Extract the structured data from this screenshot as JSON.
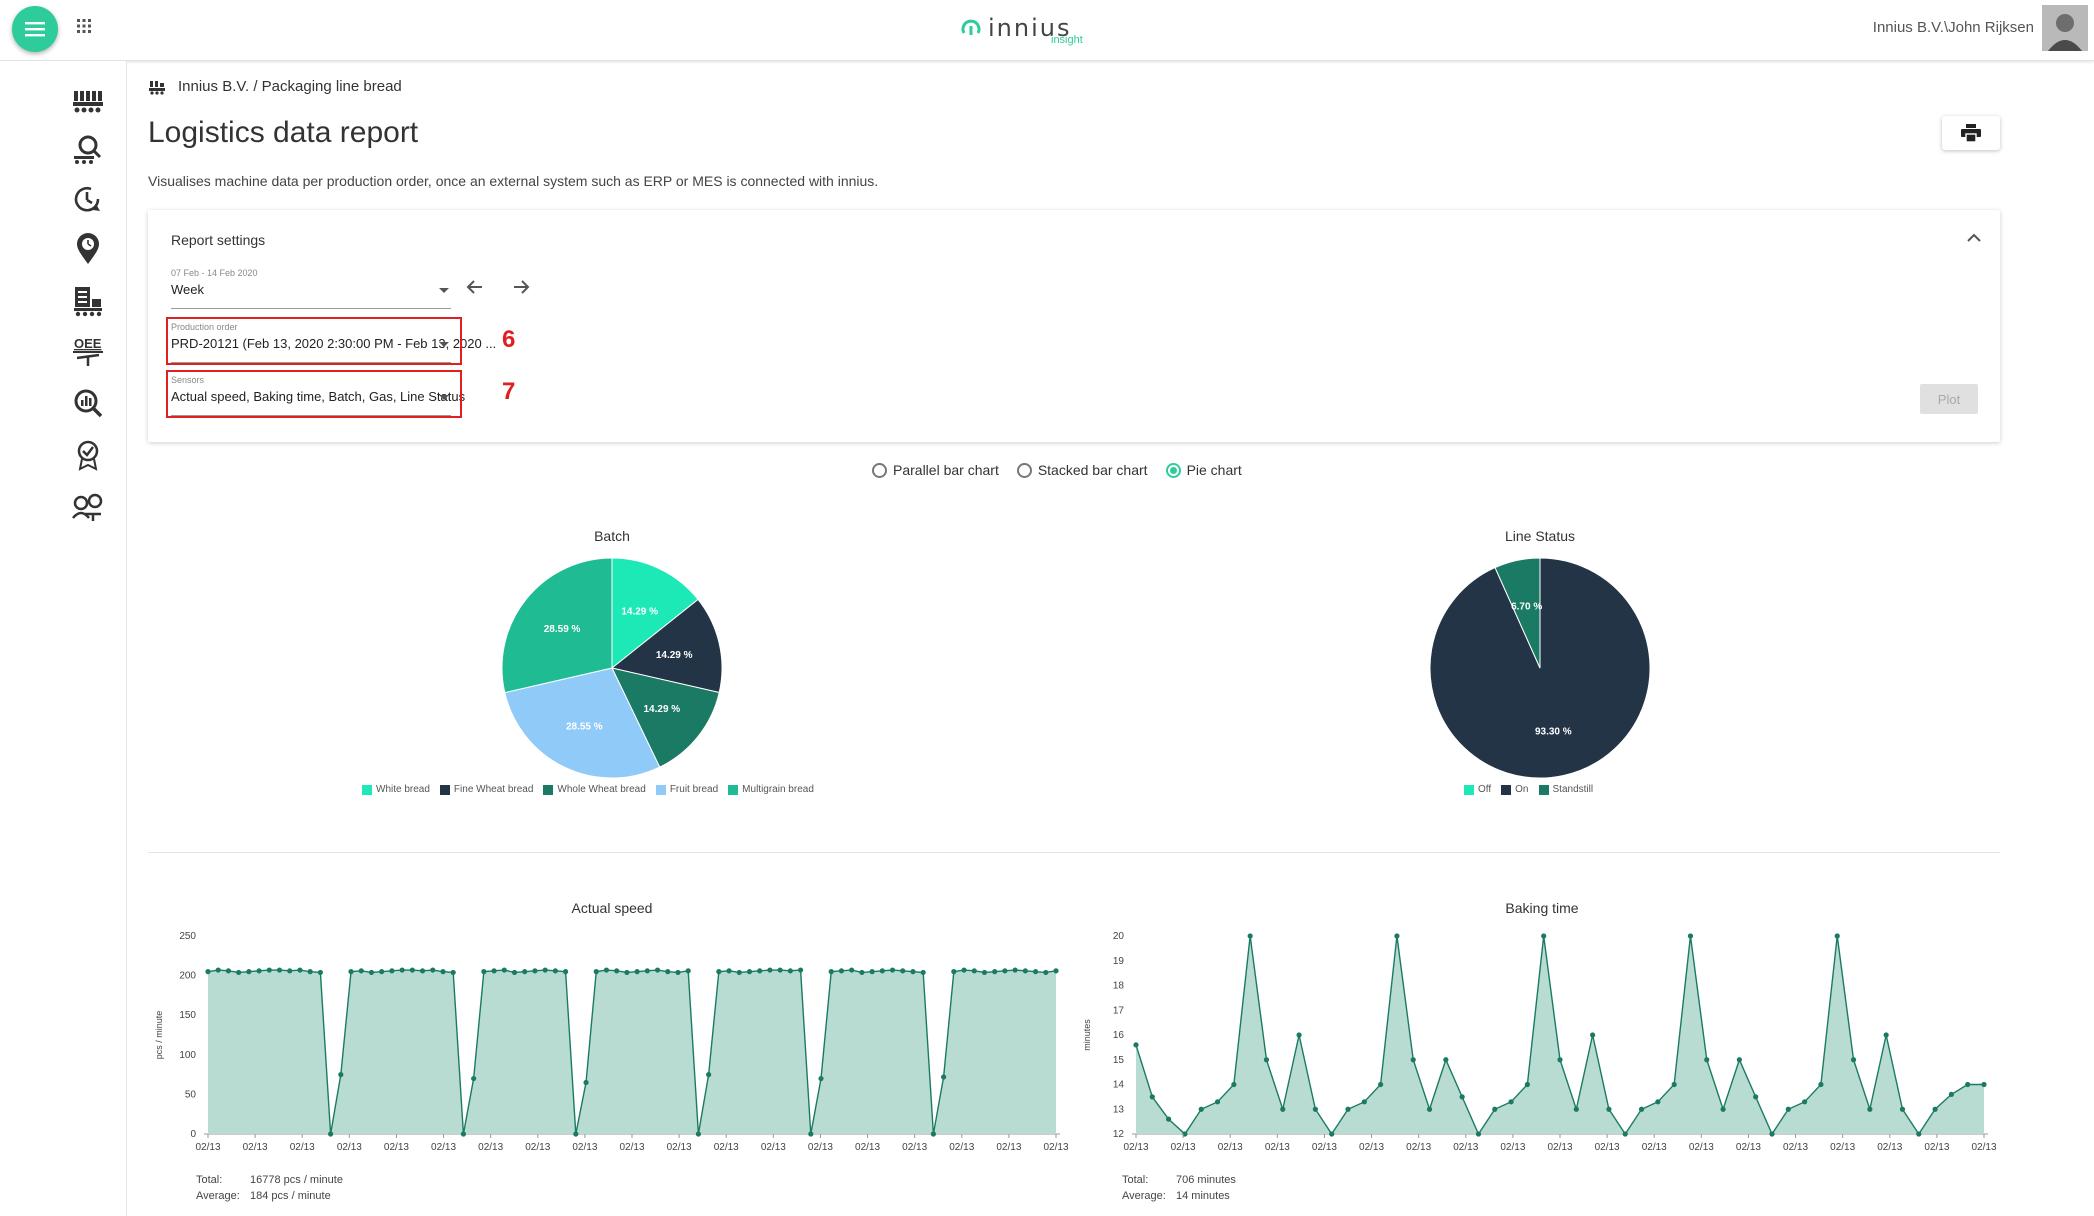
{
  "header": {
    "logo_text": "innius",
    "logo_sub": "insight",
    "user_name": "Innius B.V.\\John Rijksen"
  },
  "sidebar": {
    "items": [
      {
        "name": "machines-icon"
      },
      {
        "name": "search-machine-icon"
      },
      {
        "name": "history-icon"
      },
      {
        "name": "location-icon"
      },
      {
        "name": "reports-icon"
      },
      {
        "name": "oee-icon",
        "label": "OEE"
      },
      {
        "name": "analytics-icon"
      },
      {
        "name": "certificate-icon"
      },
      {
        "name": "people-icon"
      }
    ]
  },
  "breadcrumb": {
    "text": "Innius B.V. / Packaging line bread"
  },
  "page": {
    "title": "Logistics data report",
    "description": "Visualises machine data per production order, once an external system such as ERP or MES is connected with innius."
  },
  "settings": {
    "title": "Report settings",
    "period": {
      "label": "07 Feb - 14 Feb 2020",
      "value": "Week"
    },
    "production_order": {
      "label": "Production order",
      "value": "PRD-20121 (Feb 13, 2020 2:30:00 PM - Feb 13, 2020 ..."
    },
    "sensors": {
      "label": "Sensors",
      "value": "Actual speed, Baking time, Batch, Gas, Line Status"
    },
    "marker_6": "6",
    "marker_7": "7",
    "plot_label": "Plot"
  },
  "chart_options": {
    "parallel": "Parallel bar chart",
    "stacked": "Stacked bar chart",
    "pie": "Pie chart",
    "selected": "pie"
  },
  "chart_data": [
    {
      "type": "pie",
      "title": "Batch",
      "categories": [
        "White bread",
        "Fine Wheat bread",
        "Whole Wheat bread",
        "Fruit bread",
        "Multigrain bread"
      ],
      "values": [
        14.29,
        14.29,
        14.29,
        28.55,
        28.59
      ],
      "labels": [
        "14.29 %",
        "14.29 %",
        "14.29 %",
        "28.55 %",
        "28.59 %"
      ],
      "colors": [
        "#1de9b6",
        "#243447",
        "#1b7a63",
        "#90caf9",
        "#1fbc94"
      ],
      "legend": "bottom"
    },
    {
      "type": "pie",
      "title": "Line Status",
      "categories": [
        "Off",
        "On",
        "Standstill"
      ],
      "values": [
        0,
        93.3,
        6.7
      ],
      "labels": [
        "",
        "93.30 %",
        "6.70 %"
      ],
      "colors": [
        "#1de9b6",
        "#243447",
        "#1b7a63"
      ],
      "legend": "bottom"
    },
    {
      "type": "area",
      "title": "Actual speed",
      "ylabel": "pcs / minute",
      "ylim": [
        0,
        250
      ],
      "yticks": [
        0,
        50,
        100,
        150,
        200,
        250
      ],
      "xtick_label": "02/13",
      "xtick_count": 19,
      "values": [
        205,
        207,
        206,
        204,
        205,
        206,
        207,
        207,
        206,
        207,
        205,
        204,
        0,
        75,
        205,
        206,
        204,
        205,
        206,
        207,
        207,
        206,
        207,
        205,
        204,
        0,
        70,
        205,
        206,
        207,
        204,
        205,
        206,
        207,
        206,
        205,
        0,
        65,
        205,
        207,
        206,
        204,
        205,
        206,
        207,
        205,
        204,
        206,
        0,
        75,
        205,
        206,
        204,
        205,
        206,
        207,
        207,
        206,
        207,
        0,
        70,
        205,
        206,
        207,
        204,
        205,
        206,
        207,
        206,
        205,
        204,
        0,
        72,
        205,
        207,
        206,
        204,
        205,
        206,
        207,
        206,
        205,
        204,
        206
      ],
      "summary": {
        "total_label": "Total:",
        "total": "16778 pcs / minute",
        "average_label": "Average:",
        "average": "184 pcs / minute"
      }
    },
    {
      "type": "area",
      "title": "Baking time",
      "ylabel": "minutes",
      "ylim": [
        12,
        20
      ],
      "yticks": [
        12,
        13,
        14,
        15,
        16,
        17,
        18,
        19,
        20
      ],
      "xtick_label": "02/13",
      "xtick_count": 19,
      "values": [
        15.6,
        13.5,
        12.6,
        12.0,
        13.0,
        13.3,
        14.0,
        20.0,
        15.0,
        13.0,
        16.0,
        13.0,
        12.0,
        13.0,
        13.3,
        14.0,
        20.0,
        15.0,
        13.0,
        15.0,
        13.5,
        12.0,
        13.0,
        13.3,
        14.0,
        20.0,
        15.0,
        13.0,
        16.0,
        13.0,
        12.0,
        13.0,
        13.3,
        14.0,
        20.0,
        15.0,
        13.0,
        15.0,
        13.5,
        12.0,
        13.0,
        13.3,
        14.0,
        20.0,
        15.0,
        13.0,
        16.0,
        13.0,
        12.0,
        13.0,
        13.6,
        14.0,
        14.0
      ],
      "summary": {
        "total_label": "Total:",
        "total": "706 minutes",
        "average_label": "Average:",
        "average": "14 minutes"
      }
    }
  ]
}
